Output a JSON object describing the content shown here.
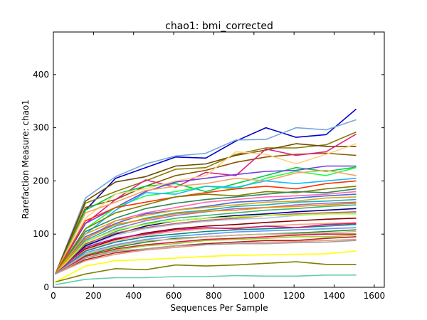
{
  "chart_data": {
    "type": "line",
    "title": "chao1: bmi_corrected",
    "xlabel": "Sequences Per Sample",
    "ylabel": "Rarefaction Measure: chao1",
    "xlim": [
      0,
      1650
    ],
    "ylim": [
      0,
      480
    ],
    "xticks": [
      "0",
      "200",
      "400",
      "600",
      "800",
      "1000",
      "1200",
      "1400",
      "1600"
    ],
    "yticks": [
      "0",
      "100",
      "200",
      "300",
      "400"
    ],
    "grid": false,
    "x": [
      10,
      160,
      310,
      460,
      610,
      760,
      910,
      1060,
      1210,
      1360,
      1510
    ],
    "series": [
      {
        "color": "#0000cc",
        "values": [
          25,
          145,
          205,
          225,
          245,
          243,
          275,
          300,
          282,
          287,
          335
        ]
      },
      {
        "color": "#7ba7d8",
        "values": [
          25,
          168,
          208,
          232,
          247,
          252,
          277,
          278,
          300,
          296,
          315
        ]
      },
      {
        "color": "#887d00",
        "values": [
          25,
          158,
          180,
          200,
          222,
          225,
          250,
          262,
          262,
          268,
          292
        ]
      },
      {
        "color": "#6b4a00",
        "values": [
          25,
          162,
          198,
          208,
          228,
          232,
          248,
          258,
          270,
          265,
          265
        ]
      },
      {
        "color": "#8b5500",
        "values": [
          25,
          150,
          165,
          190,
          210,
          220,
          235,
          245,
          250,
          252,
          248
        ]
      },
      {
        "color": "#e0218a",
        "values": [
          25,
          120,
          165,
          202,
          188,
          216,
          210,
          260,
          248,
          255,
          288
        ]
      },
      {
        "color": "#00cc44",
        "values": [
          25,
          145,
          175,
          190,
          195,
          180,
          195,
          210,
          225,
          218,
          226
        ]
      },
      {
        "color": "#6f3fe0",
        "values": [
          25,
          120,
          150,
          180,
          198,
          205,
          212,
          218,
          220,
          228,
          228
        ]
      },
      {
        "color": "#22ff44",
        "values": [
          25,
          110,
          150,
          172,
          180,
          190,
          185,
          205,
          218,
          210,
          225
        ]
      },
      {
        "color": "#ffd27f",
        "values": [
          25,
          130,
          175,
          185,
          200,
          210,
          255,
          250,
          232,
          250,
          270
        ]
      },
      {
        "color": "#f4a460",
        "values": [
          25,
          140,
          160,
          182,
          190,
          195,
          205,
          200,
          215,
          220,
          210
        ]
      },
      {
        "color": "#1ab8ff",
        "values": [
          25,
          100,
          145,
          178,
          175,
          190,
          188,
          200,
          195,
          200,
          205
        ]
      },
      {
        "color": "#ff3300",
        "values": [
          25,
          125,
          150,
          160,
          170,
          178,
          185,
          190,
          185,
          195,
          200
        ]
      },
      {
        "color": "#808000",
        "values": [
          25,
          110,
          140,
          155,
          170,
          175,
          172,
          180,
          178,
          185,
          190
        ]
      },
      {
        "color": "#2e8b57",
        "values": [
          25,
          105,
          130,
          148,
          158,
          165,
          170,
          175,
          180,
          178,
          185
        ]
      },
      {
        "color": "#ff69b4",
        "values": [
          25,
          90,
          125,
          140,
          150,
          160,
          165,
          170,
          172,
          175,
          180
        ]
      },
      {
        "color": "#4169e1",
        "values": [
          25,
          95,
          120,
          138,
          145,
          152,
          160,
          163,
          168,
          172,
          175
        ]
      },
      {
        "color": "#daa520",
        "values": [
          25,
          100,
          125,
          135,
          145,
          150,
          155,
          160,
          162,
          168,
          170
        ]
      },
      {
        "color": "#20b2aa",
        "values": [
          25,
          88,
          115,
          130,
          140,
          145,
          152,
          155,
          160,
          162,
          165
        ]
      },
      {
        "color": "#9370db",
        "values": [
          25,
          85,
          110,
          125,
          135,
          142,
          148,
          150,
          155,
          158,
          160
        ]
      },
      {
        "color": "#ff8c00",
        "values": [
          25,
          92,
          118,
          128,
          138,
          143,
          145,
          150,
          152,
          155,
          158
        ]
      },
      {
        "color": "#3cb371",
        "values": [
          25,
          80,
          105,
          120,
          130,
          135,
          140,
          145,
          148,
          152,
          155
        ]
      },
      {
        "color": "#00008b",
        "values": [
          25,
          78,
          100,
          115,
          125,
          130,
          135,
          138,
          142,
          145,
          148
        ]
      },
      {
        "color": "#cd5c5c",
        "values": [
          25,
          82,
          102,
          112,
          120,
          126,
          130,
          135,
          138,
          140,
          142
        ]
      },
      {
        "color": "#b0c4de",
        "values": [
          25,
          75,
          98,
          110,
          118,
          124,
          128,
          130,
          135,
          138,
          140
        ]
      },
      {
        "color": "#adff2f",
        "values": [
          25,
          85,
          108,
          118,
          125,
          130,
          132,
          135,
          136,
          138,
          138
        ]
      },
      {
        "color": "#8b0000",
        "values": [
          25,
          72,
          90,
          102,
          110,
          115,
          118,
          122,
          125,
          128,
          130
        ]
      },
      {
        "color": "#ffa07a",
        "values": [
          25,
          70,
          88,
          98,
          105,
          110,
          112,
          115,
          118,
          120,
          122
        ]
      },
      {
        "color": "#008b8b",
        "values": [
          25,
          68,
          85,
          95,
          100,
          105,
          108,
          110,
          112,
          115,
          118
        ]
      },
      {
        "color": "#c71585",
        "values": [
          25,
          75,
          92,
          100,
          108,
          112,
          110,
          115,
          112,
          118,
          120
        ]
      },
      {
        "color": "#6495ed",
        "values": [
          25,
          65,
          80,
          90,
          96,
          100,
          104,
          106,
          108,
          110,
          112
        ]
      },
      {
        "color": "#228b22",
        "values": [
          25,
          60,
          75,
          85,
          92,
          95,
          98,
          100,
          102,
          105,
          108
        ]
      },
      {
        "color": "#d2b48c",
        "values": [
          25,
          62,
          78,
          88,
          90,
          95,
          98,
          100,
          100,
          102,
          105
        ]
      },
      {
        "color": "#dc143c",
        "values": [
          25,
          58,
          72,
          80,
          85,
          90,
          92,
          95,
          98,
          100,
          100
        ]
      },
      {
        "color": "#9acd32",
        "values": [
          25,
          55,
          70,
          78,
          82,
          88,
          90,
          92,
          95,
          95,
          98
        ]
      },
      {
        "color": "#b22222",
        "values": [
          25,
          52,
          65,
          72,
          78,
          82,
          85,
          88,
          88,
          92,
          95
        ]
      },
      {
        "color": "#e9967a",
        "values": [
          25,
          50,
          62,
          70,
          75,
          80,
          82,
          85,
          86,
          88,
          90
        ]
      },
      {
        "color": "#a0a0a0",
        "values": [
          25,
          55,
          68,
          72,
          78,
          80,
          82,
          82,
          84,
          85,
          88
        ]
      },
      {
        "color": "#ffff00",
        "values": [
          10,
          40,
          50,
          52,
          55,
          58,
          60,
          61,
          62,
          63,
          68
        ]
      },
      {
        "color": "#808000",
        "values": [
          10,
          25,
          35,
          33,
          42,
          40,
          42,
          45,
          48,
          43,
          43
        ]
      },
      {
        "color": "#66cdaa",
        "values": [
          5,
          15,
          18,
          18,
          20,
          20,
          22,
          21,
          21,
          23,
          23
        ]
      }
    ]
  }
}
